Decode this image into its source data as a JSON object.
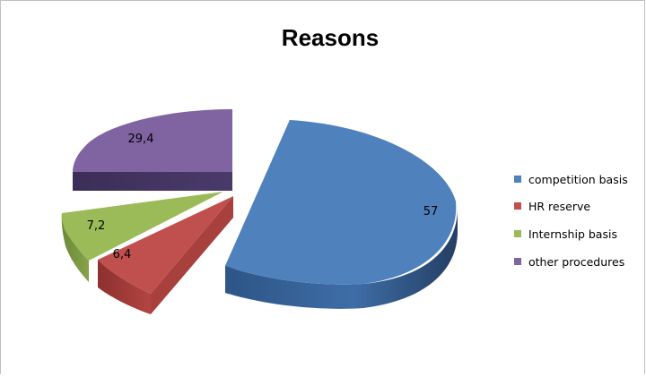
{
  "chart_data": {
    "type": "pie",
    "style": "3d-exploded",
    "title": "Reasons",
    "categories": [
      "competition basis",
      "HR reserve",
      "Internship basis",
      "other procedures"
    ],
    "values": [
      57,
      6.4,
      7.2,
      29.4
    ],
    "data_labels": [
      "57",
      "6,4",
      "7,2",
      "29,4"
    ],
    "colors": [
      "#4F81BD",
      "#C0504D",
      "#9BBB59",
      "#8064A2"
    ],
    "legend_position": "right"
  }
}
